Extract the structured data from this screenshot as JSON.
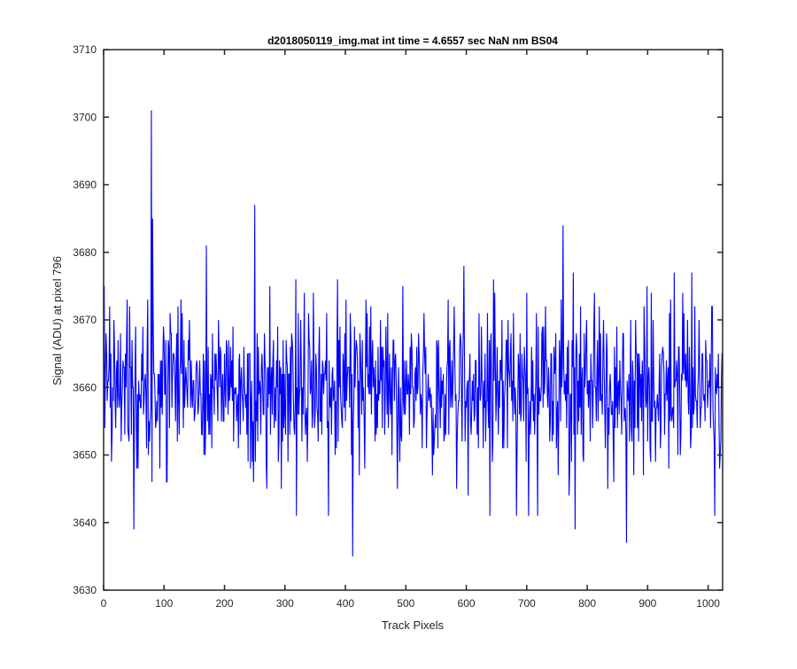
{
  "chart_data": {
    "type": "line",
    "title": "d2018050119_img.mat int time = 4.6557 sec  NaN nm BS04",
    "xlabel": "Track Pixels",
    "ylabel": "Signal (ADU) at pixel 796",
    "xlim": [
      0,
      1024
    ],
    "ylim": [
      3630,
      3710
    ],
    "xticks": [
      0,
      100,
      200,
      300,
      400,
      500,
      600,
      700,
      800,
      900,
      1000
    ],
    "yticks": [
      3630,
      3640,
      3650,
      3660,
      3670,
      3680,
      3690,
      3700,
      3710
    ],
    "grid": false,
    "box": true,
    "series": [
      {
        "color": "#0000ff",
        "x_start": 1,
        "x_step": 1,
        "count": 1024,
        "mean": 3660,
        "range": [
          3635,
          3701
        ],
        "notable_points": [
          {
            "x": 79,
            "y": 3701
          },
          {
            "x": 81,
            "y": 3685
          },
          {
            "x": 250,
            "y": 3687
          },
          {
            "x": 412,
            "y": 3635
          },
          {
            "x": 50,
            "y": 3639
          },
          {
            "x": 760,
            "y": 3684
          },
          {
            "x": 865,
            "y": 3637
          },
          {
            "x": 780,
            "y": 3639
          }
        ]
      }
    ]
  }
}
